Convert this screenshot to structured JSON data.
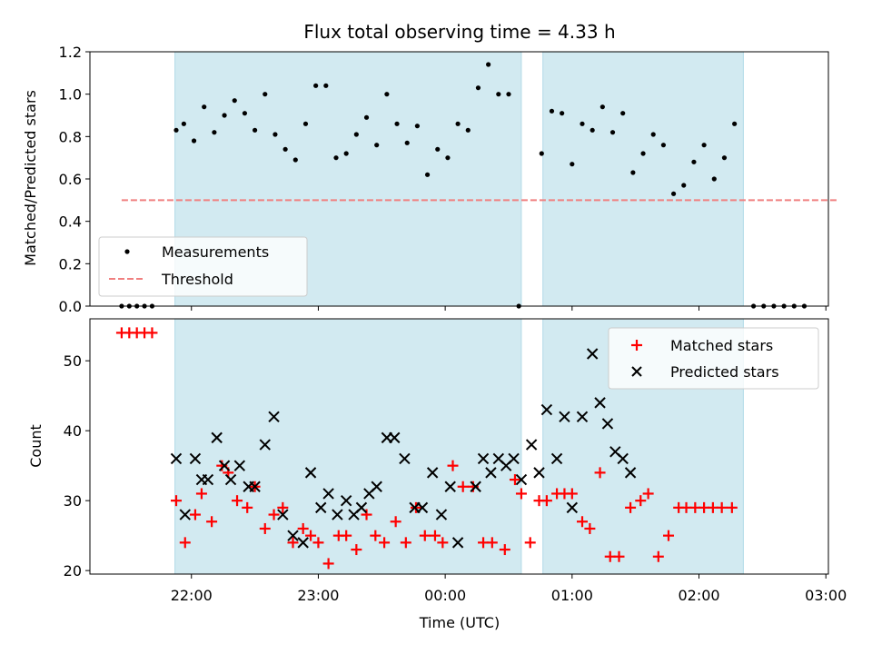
{
  "chart_data": {
    "type": "scatter",
    "title": "Flux total observing time = 4.33 h",
    "xlabel": "Time (UTC)",
    "x_tick_labels": [
      "22:00",
      "23:00",
      "00:00",
      "01:00",
      "02:00",
      "03:00"
    ],
    "x_ticks_hours": [
      22,
      23,
      24,
      25,
      26,
      27
    ],
    "xlim_hours": [
      21.2,
      27.02
    ],
    "shaded_intervals_hours": [
      [
        21.87,
        24.6
      ],
      [
        24.77,
        26.35
      ]
    ],
    "shade_color": "#add8e6",
    "top": {
      "ylabel": "Matched/Predicted stars",
      "ylim": [
        0,
        1.2
      ],
      "y_ticks": [
        "0.0",
        "0.2",
        "0.4",
        "0.6",
        "0.8",
        "1.0",
        "1.2"
      ],
      "legend": {
        "placement": "lower-left",
        "entries": [
          "Measurements",
          "Threshold"
        ]
      },
      "threshold": {
        "value": 0.5,
        "x_range_hours": [
          21.45,
          27.1
        ],
        "color": "#f08080"
      },
      "measurements": {
        "name": "Measurements",
        "color": "#000000",
        "points": [
          [
            21.45,
            0.0
          ],
          [
            21.51,
            0.0
          ],
          [
            21.57,
            0.0
          ],
          [
            21.63,
            0.0
          ],
          [
            21.69,
            0.0
          ],
          [
            21.88,
            0.83
          ],
          [
            21.94,
            0.86
          ],
          [
            22.02,
            0.78
          ],
          [
            22.1,
            0.94
          ],
          [
            22.18,
            0.82
          ],
          [
            22.26,
            0.9
          ],
          [
            22.34,
            0.97
          ],
          [
            22.42,
            0.91
          ],
          [
            22.5,
            0.83
          ],
          [
            22.58,
            1.0
          ],
          [
            22.66,
            0.81
          ],
          [
            22.74,
            0.74
          ],
          [
            22.82,
            0.69
          ],
          [
            22.9,
            0.86
          ],
          [
            22.98,
            1.04
          ],
          [
            23.06,
            1.04
          ],
          [
            23.14,
            0.7
          ],
          [
            23.22,
            0.72
          ],
          [
            23.3,
            0.81
          ],
          [
            23.38,
            0.89
          ],
          [
            23.46,
            0.76
          ],
          [
            23.54,
            1.0
          ],
          [
            23.62,
            0.86
          ],
          [
            23.7,
            0.77
          ],
          [
            23.78,
            0.85
          ],
          [
            23.86,
            0.62
          ],
          [
            23.94,
            0.74
          ],
          [
            24.02,
            0.7
          ],
          [
            24.1,
            0.86
          ],
          [
            24.18,
            0.83
          ],
          [
            24.26,
            1.03
          ],
          [
            24.34,
            1.14
          ],
          [
            24.42,
            1.0
          ],
          [
            24.5,
            1.0
          ],
          [
            24.58,
            0.0
          ],
          [
            24.76,
            0.72
          ],
          [
            24.84,
            0.92
          ],
          [
            24.92,
            0.91
          ],
          [
            25.0,
            0.67
          ],
          [
            25.08,
            0.86
          ],
          [
            25.16,
            0.83
          ],
          [
            25.24,
            0.94
          ],
          [
            25.32,
            0.82
          ],
          [
            25.4,
            0.91
          ],
          [
            25.48,
            0.63
          ],
          [
            25.56,
            0.72
          ],
          [
            25.64,
            0.81
          ],
          [
            25.72,
            0.76
          ],
          [
            25.8,
            0.53
          ],
          [
            25.88,
            0.57
          ],
          [
            25.96,
            0.68
          ],
          [
            26.04,
            0.76
          ],
          [
            26.12,
            0.6
          ],
          [
            26.2,
            0.7
          ],
          [
            26.28,
            0.86
          ],
          [
            26.43,
            0.0
          ],
          [
            26.51,
            0.0
          ],
          [
            26.59,
            0.0
          ],
          [
            26.67,
            0.0
          ],
          [
            26.75,
            0.0
          ],
          [
            26.83,
            0.0
          ]
        ]
      }
    },
    "bottom": {
      "ylabel": "Count",
      "ylim": [
        19.5,
        56
      ],
      "y_ticks": [
        "20",
        "30",
        "40",
        "50"
      ],
      "legend": {
        "placement": "top-right",
        "entries": [
          "Matched stars",
          "Predicted stars"
        ]
      },
      "series": [
        {
          "name": "Matched stars",
          "marker": "plus",
          "color": "#ff0000",
          "points": [
            [
              21.45,
              54
            ],
            [
              21.51,
              54
            ],
            [
              21.57,
              54
            ],
            [
              21.63,
              54
            ],
            [
              21.69,
              54
            ],
            [
              21.88,
              30
            ],
            [
              21.95,
              24
            ],
            [
              22.03,
              28
            ],
            [
              22.08,
              31
            ],
            [
              22.16,
              27
            ],
            [
              22.24,
              35
            ],
            [
              22.29,
              34
            ],
            [
              22.36,
              30
            ],
            [
              22.44,
              29
            ],
            [
              22.5,
              32
            ],
            [
              22.58,
              26
            ],
            [
              22.65,
              28
            ],
            [
              22.72,
              29
            ],
            [
              22.8,
              24
            ],
            [
              22.88,
              26
            ],
            [
              22.94,
              25
            ],
            [
              23.0,
              24
            ],
            [
              23.08,
              21
            ],
            [
              23.16,
              25
            ],
            [
              23.22,
              25
            ],
            [
              23.3,
              23
            ],
            [
              23.38,
              28
            ],
            [
              23.45,
              25
            ],
            [
              23.52,
              24
            ],
            [
              23.61,
              27
            ],
            [
              23.69,
              24
            ],
            [
              23.77,
              29
            ],
            [
              23.84,
              25
            ],
            [
              23.92,
              25
            ],
            [
              23.98,
              24
            ],
            [
              24.06,
              35
            ],
            [
              24.14,
              32
            ],
            [
              24.22,
              32
            ],
            [
              24.3,
              24
            ],
            [
              24.37,
              24
            ],
            [
              24.47,
              23
            ],
            [
              24.55,
              33
            ],
            [
              24.6,
              31
            ],
            [
              24.67,
              24
            ],
            [
              24.74,
              30
            ],
            [
              24.8,
              30
            ],
            [
              24.88,
              31
            ],
            [
              24.94,
              31
            ],
            [
              25.0,
              31
            ],
            [
              25.08,
              27
            ],
            [
              25.14,
              26
            ],
            [
              25.22,
              34
            ],
            [
              25.3,
              22
            ],
            [
              25.37,
              22
            ],
            [
              25.46,
              29
            ],
            [
              25.54,
              30
            ],
            [
              25.6,
              31
            ],
            [
              25.68,
              22
            ],
            [
              25.76,
              25
            ],
            [
              25.84,
              29
            ],
            [
              25.9,
              29
            ],
            [
              25.97,
              29
            ],
            [
              26.04,
              29
            ],
            [
              26.11,
              29
            ],
            [
              26.18,
              29
            ],
            [
              26.26,
              29
            ]
          ]
        },
        {
          "name": "Predicted stars",
          "marker": "x",
          "color": "#000000",
          "points": [
            [
              21.88,
              36
            ],
            [
              21.95,
              28
            ],
            [
              22.03,
              36
            ],
            [
              22.08,
              33
            ],
            [
              22.13,
              33
            ],
            [
              22.2,
              39
            ],
            [
              22.26,
              35
            ],
            [
              22.31,
              33
            ],
            [
              22.38,
              35
            ],
            [
              22.45,
              32
            ],
            [
              22.5,
              32
            ],
            [
              22.58,
              38
            ],
            [
              22.65,
              42
            ],
            [
              22.72,
              28
            ],
            [
              22.8,
              25
            ],
            [
              22.88,
              24
            ],
            [
              22.94,
              34
            ],
            [
              23.02,
              29
            ],
            [
              23.08,
              31
            ],
            [
              23.15,
              28
            ],
            [
              23.22,
              30
            ],
            [
              23.28,
              28
            ],
            [
              23.34,
              29
            ],
            [
              23.4,
              31
            ],
            [
              23.46,
              32
            ],
            [
              23.54,
              39
            ],
            [
              23.6,
              39
            ],
            [
              23.68,
              36
            ],
            [
              23.76,
              29
            ],
            [
              23.82,
              29
            ],
            [
              23.9,
              34
            ],
            [
              23.97,
              28
            ],
            [
              24.04,
              32
            ],
            [
              24.1,
              24
            ],
            [
              24.24,
              32
            ],
            [
              24.3,
              36
            ],
            [
              24.36,
              34
            ],
            [
              24.42,
              36
            ],
            [
              24.48,
              35
            ],
            [
              24.54,
              36
            ],
            [
              24.6,
              33
            ],
            [
              24.68,
              38
            ],
            [
              24.74,
              34
            ],
            [
              24.8,
              43
            ],
            [
              24.88,
              36
            ],
            [
              24.94,
              42
            ],
            [
              25.0,
              29
            ],
            [
              25.08,
              42
            ],
            [
              25.16,
              51
            ],
            [
              25.22,
              44
            ],
            [
              25.28,
              41
            ],
            [
              25.34,
              37
            ],
            [
              25.4,
              36
            ],
            [
              25.46,
              34
            ]
          ]
        }
      ]
    }
  }
}
